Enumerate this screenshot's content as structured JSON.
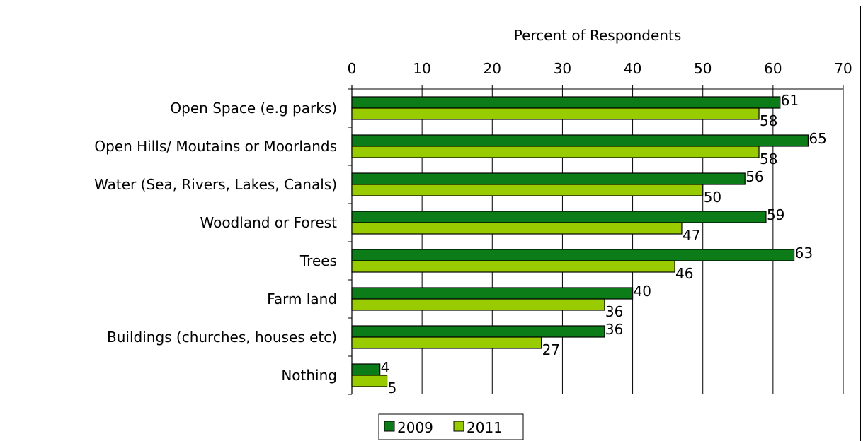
{
  "chart_data": {
    "type": "bar",
    "orientation": "horizontal",
    "xlabel": "Percent of Respondents",
    "xaxis_position": "top",
    "xlim": [
      0,
      70
    ],
    "xticks": [
      0,
      10,
      20,
      30,
      40,
      50,
      60,
      70
    ],
    "grid": true,
    "legend_position": "bottom",
    "categories": [
      "Open Space (e.g parks)",
      "Open Hills/ Moutains or Moorlands",
      "Water (Sea, Rivers, Lakes, Canals)",
      "Woodland or Forest",
      "Trees",
      "Farm land",
      "Buildings (churches, houses etc)",
      "Nothing"
    ],
    "series": [
      {
        "name": "2009",
        "color": "#0b7c17",
        "values": [
          61,
          65,
          56,
          59,
          63,
          40,
          36,
          4
        ]
      },
      {
        "name": "2011",
        "color": "#99cc00",
        "values": [
          58,
          58,
          50,
          47,
          46,
          36,
          27,
          5
        ]
      }
    ]
  }
}
